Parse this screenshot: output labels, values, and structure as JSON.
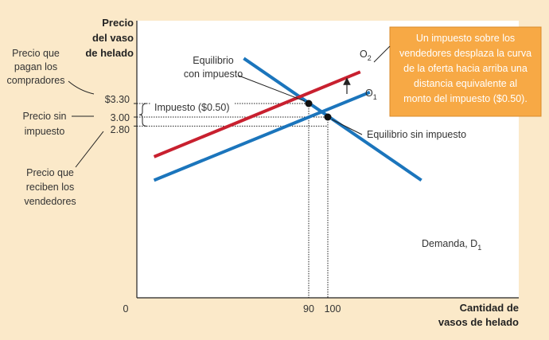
{
  "chart_data": {
    "type": "line",
    "title": "",
    "xlabel": [
      "Cantidad de",
      "vasos de helado"
    ],
    "ylabel": [
      "Precio",
      "del vaso",
      "de helado"
    ],
    "origin_label": "0",
    "x_ticks": [
      {
        "value": 90,
        "label": "90"
      },
      {
        "value": 100,
        "label": "100"
      }
    ],
    "y_ticks": [
      {
        "value": 3.3,
        "label": "$3.30"
      },
      {
        "value": 3.0,
        "label": "3.00"
      },
      {
        "value": 2.8,
        "label": "2.80"
      }
    ],
    "series": [
      {
        "name": "D1",
        "label_main": "Demanda, D",
        "label_sub": "1",
        "color": "#1b75bc",
        "points": [
          [
            56,
            4.3
          ],
          [
            149,
            1.6
          ]
        ]
      },
      {
        "name": "O1",
        "label_main": "O",
        "label_sub": "1",
        "color": "#1b75bc",
        "points": [
          [
            9,
            1.6
          ],
          [
            122,
            3.55
          ]
        ]
      },
      {
        "name": "O2",
        "label_main": "O",
        "label_sub": "2",
        "color": "#c8202f",
        "points": [
          [
            9,
            2.12
          ],
          [
            117,
            4.0
          ]
        ]
      }
    ],
    "equilibria": [
      {
        "x": 90,
        "y": 3.3,
        "label": [
          "Equilibrio",
          "con impuesto"
        ]
      },
      {
        "x": 100,
        "y": 3.0,
        "label": [
          "Equilibrio sin impuesto"
        ]
      }
    ],
    "tax_label": "Impuesto ($0.50)",
    "side_labels": [
      {
        "text": [
          "Precio que",
          "pagan los",
          "compradores"
        ]
      },
      {
        "text": [
          "Precio sin",
          "impuesto"
        ]
      },
      {
        "text": [
          "Precio que",
          "reciben los",
          "vendedores"
        ]
      }
    ],
    "note": {
      "lines": [
        "Un impuesto sobre los",
        "vendedores desplaza la curva",
        "de la oferta hacia arriba una",
        "distancia equivalente al",
        "monto del impuesto ($0.50)."
      ],
      "bg": "#f7a945"
    }
  }
}
